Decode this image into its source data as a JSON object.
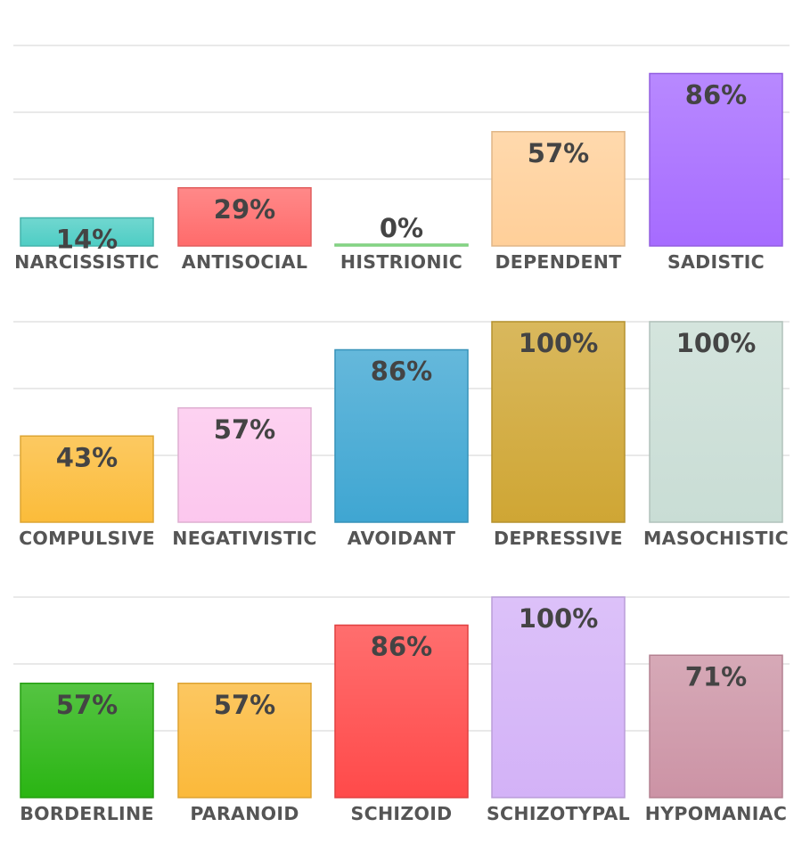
{
  "chart_data": [
    {
      "type": "bar",
      "categories": [
        "NARCISSISTIC",
        "ANTISOCIAL",
        "HISTRIONIC",
        "DEPENDENT",
        "SADISTIC"
      ],
      "values": [
        14,
        29,
        0,
        57,
        86
      ],
      "value_labels": [
        "14%",
        "29%",
        "0%",
        "57%",
        "86%"
      ],
      "colors": [
        "#4ecdc4",
        "#ff6b6b",
        "#8ee88e",
        "#ffcf99",
        "#a66bff"
      ],
      "ylim": [
        0,
        100
      ],
      "grid": true
    },
    {
      "type": "bar",
      "categories": [
        "COMPULSIVE",
        "NEGATIVISTIC",
        "AVOIDANT",
        "DEPRESSIVE",
        "MASOCHISTIC"
      ],
      "values": [
        43,
        57,
        86,
        100,
        100
      ],
      "value_labels": [
        "43%",
        "57%",
        "86%",
        "100%",
        "100%"
      ],
      "colors": [
        "#fbbc3a",
        "#fcc7ee",
        "#3fa6d2",
        "#cfa634",
        "#c9ddd5"
      ],
      "ylim": [
        0,
        100
      ],
      "grid": true
    },
    {
      "type": "bar",
      "categories": [
        "BORDERLINE",
        "PARANOID",
        "SCHIZOID",
        "SCHIZOTYPAL",
        "HYPOMANIAC"
      ],
      "values": [
        57,
        57,
        86,
        100,
        71
      ],
      "value_labels": [
        "57%",
        "57%",
        "86%",
        "100%",
        "71%"
      ],
      "colors": [
        "#2ab513",
        "#fbb93a",
        "#ff4a4a",
        "#d3b2f7",
        "#cc93a5"
      ],
      "ylim": [
        0,
        100
      ],
      "grid": true
    }
  ]
}
